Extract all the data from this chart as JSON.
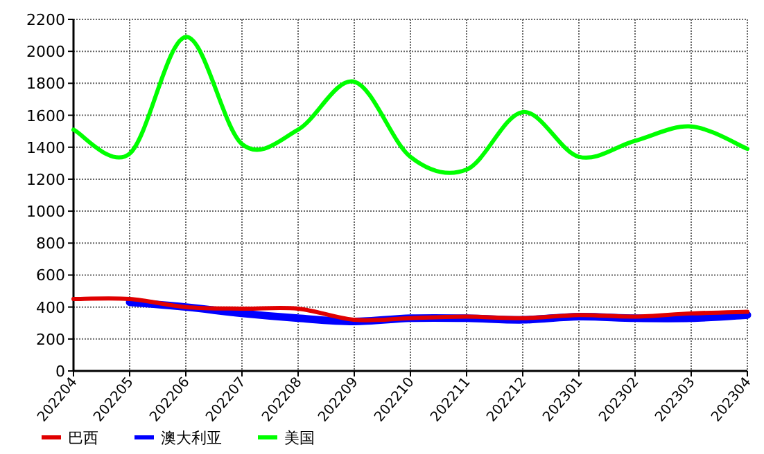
{
  "chart_data": {
    "type": "line",
    "categories": [
      "202204",
      "202205",
      "202206",
      "202207",
      "202208",
      "202209",
      "202210",
      "202211",
      "202212",
      "202301",
      "202302",
      "202303",
      "202304"
    ],
    "series": [
      {
        "name": "巴西",
        "color": "#e00000",
        "values": [
          450,
          450,
          400,
          390,
          390,
          320,
          330,
          340,
          330,
          350,
          340,
          360,
          370
        ]
      },
      {
        "name": "澳大利亚",
        "color": "#0000ff",
        "values": [
          null,
          430,
          400,
          360,
          330,
          310,
          330,
          330,
          320,
          340,
          330,
          330,
          350
        ]
      },
      {
        "name": "美国",
        "color": "#00ff00",
        "values": [
          1510,
          1360,
          2090,
          1420,
          1510,
          1810,
          1340,
          1260,
          1620,
          1340,
          1440,
          1530,
          1390
        ]
      }
    ],
    "ylim": [
      0,
      2200
    ],
    "yticks": [
      0,
      200,
      400,
      600,
      800,
      1000,
      1200,
      1400,
      1600,
      1800,
      2000,
      2200
    ],
    "grid": true,
    "legend": "bottom left",
    "marker": "none",
    "line_style": "solid"
  }
}
